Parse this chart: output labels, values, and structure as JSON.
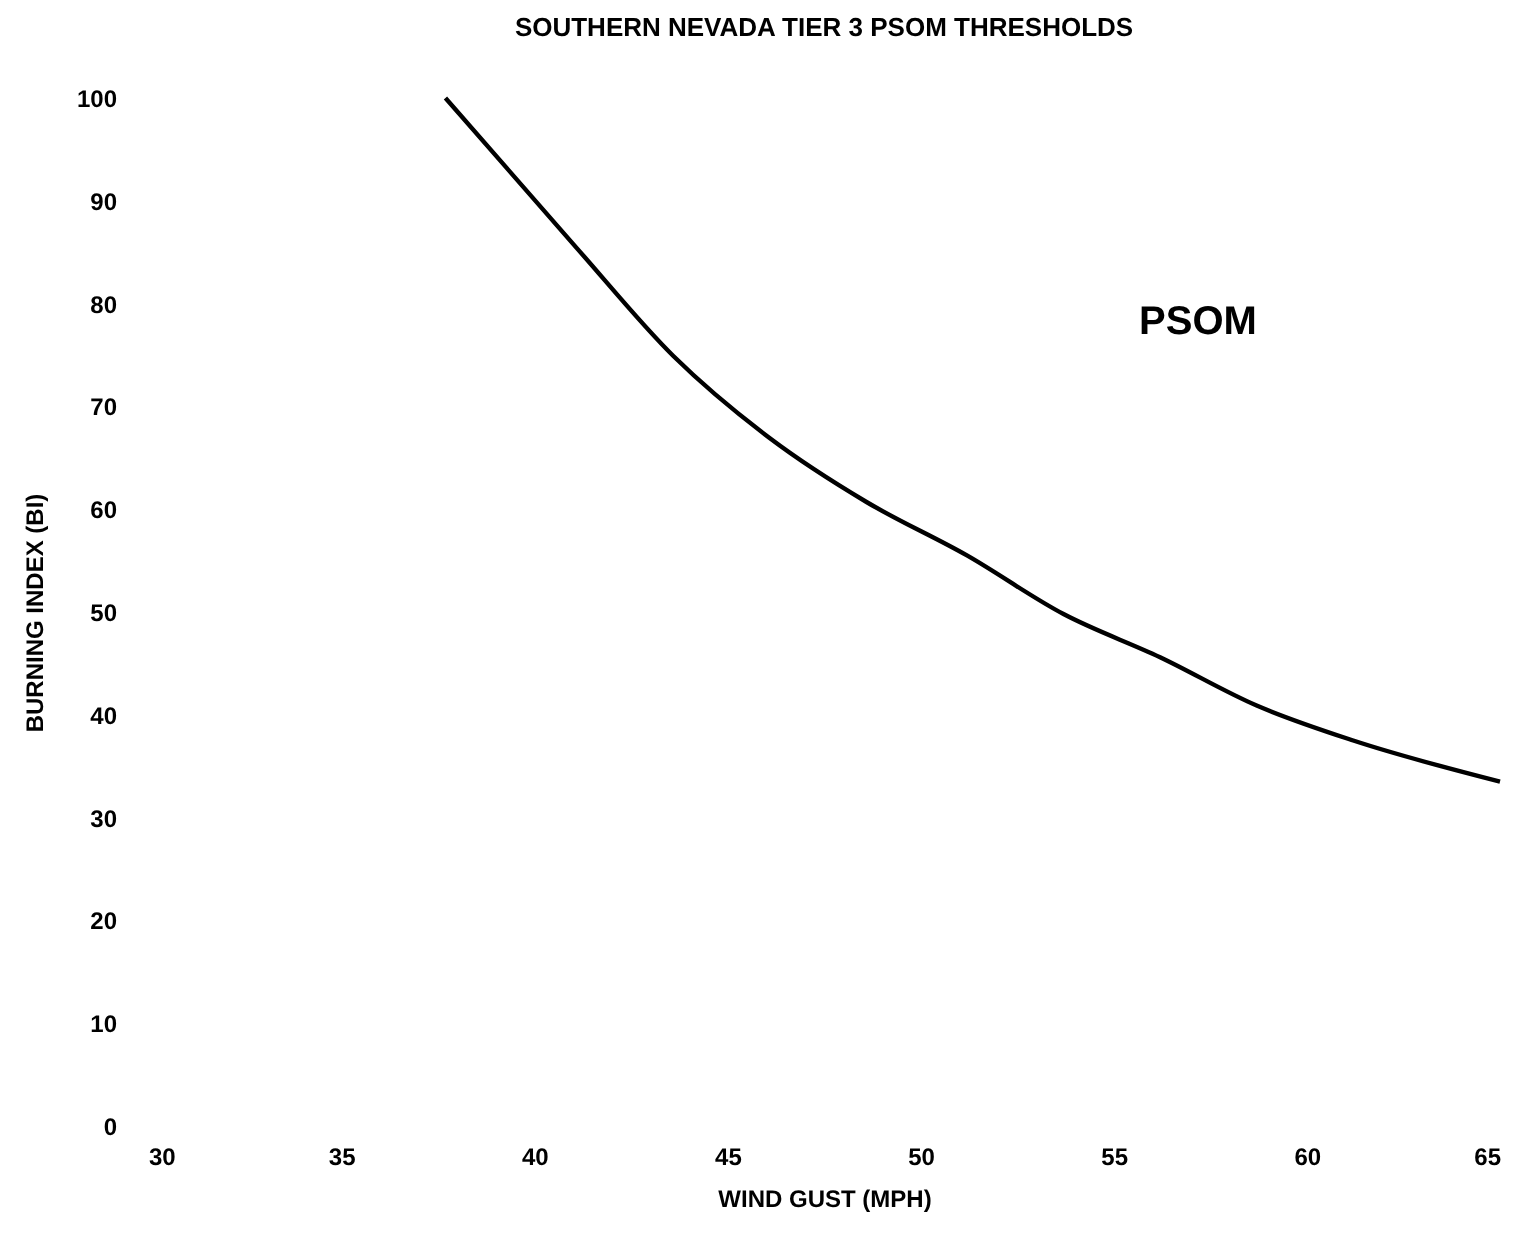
{
  "chart_data": {
    "type": "line",
    "title": "SOUTHERN NEVADA TIER 3 PSOM THRESHOLDS",
    "xlabel": "WIND GUST (MPH)",
    "ylabel": "BURNING INDEX (BI)",
    "annotations": [
      "PSOM"
    ],
    "x": [
      37.7,
      41.1,
      43.6,
      46.1,
      48.6,
      51.2,
      53.7,
      56.2,
      58.7,
      61.2,
      65
    ],
    "series": [
      {
        "color": "#000000",
        "values": [
          100,
          85.4,
          74.9,
          66.9,
          60.7,
          55.5,
          49.8,
          45.6,
          40.9,
          37.5,
          33.5
        ]
      }
    ],
    "xlim": [
      30,
      65
    ],
    "xticks": [
      30,
      35,
      40,
      45,
      50,
      55,
      60,
      65
    ],
    "ylim": [
      0,
      100
    ],
    "yticks": [
      0,
      10,
      20,
      30,
      40,
      50,
      60,
      70,
      80,
      90,
      100
    ],
    "grid": false,
    "marker": "none",
    "line_style": "solid"
  }
}
